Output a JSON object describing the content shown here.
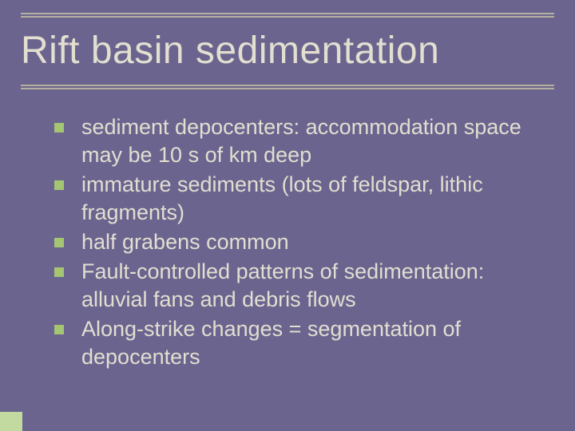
{
  "slide": {
    "title": "Rift basin sedimentation",
    "background_color": "#6b648f",
    "title_color": "#e2ded0",
    "text_color": "#e2ded0",
    "rule_color": "#b5b0a0",
    "bullet_color": "#a4c572",
    "accent_color": "#c2d9a0",
    "title_fontsize": 48,
    "body_fontsize": 27,
    "body_lineheight": 35,
    "bullets": [
      "sediment depocenters: accommodation  space may be 10 s of km deep",
      "immature sediments (lots of feldspar, lithic fragments)",
      "half grabens common",
      "Fault-controlled patterns of sedimentation: alluvial fans and debris flows",
      "Along-strike changes = segmentation  of depocenters"
    ]
  }
}
